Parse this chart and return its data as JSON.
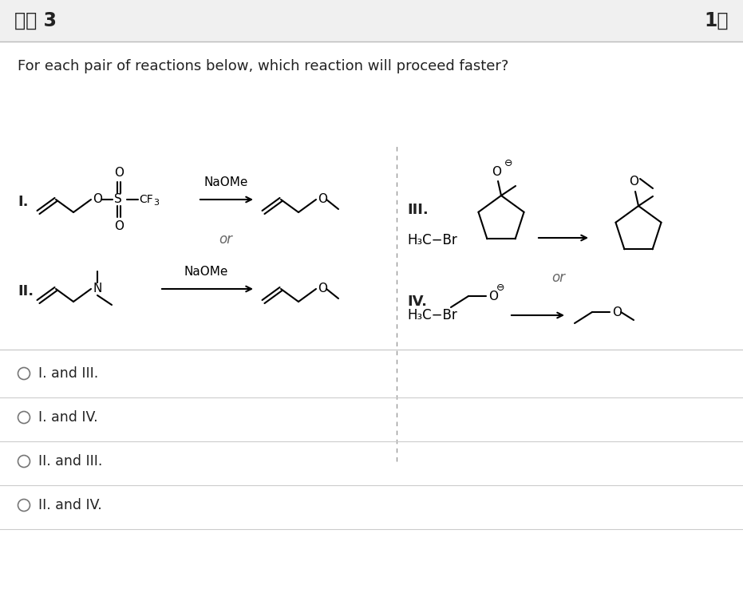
{
  "title": "질문 3",
  "score": "1점",
  "question_text": "For each pair of reactions below, which reaction will proceed faster?",
  "bg_color": "#ffffff",
  "header_bg": "#f0f0f0",
  "separator_color": "#cccccc",
  "text_color": "#222222",
  "options": [
    "I. and III.",
    "I. and IV.",
    "II. and III.",
    "II. and IV."
  ],
  "fig_width": 9.31,
  "fig_height": 7.43
}
